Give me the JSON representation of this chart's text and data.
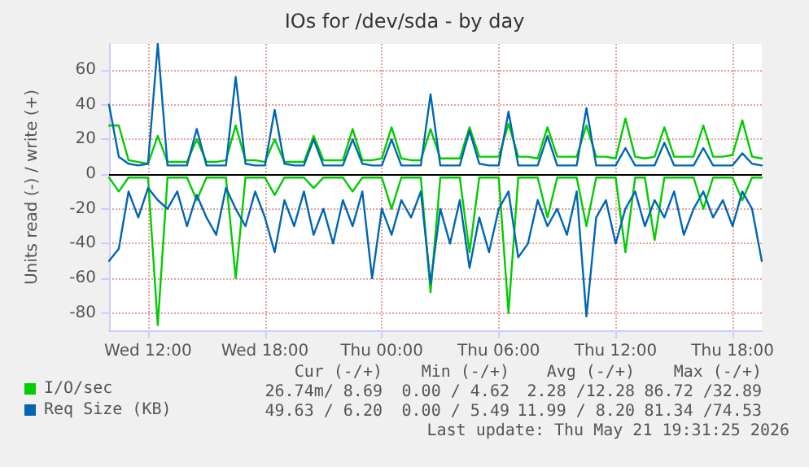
{
  "chart_data": {
    "type": "line",
    "title": "IOs for /dev/sda - by day",
    "ylabel": "Units read (-) / write (+)",
    "x": [
      "2026-05-20T10:00",
      "2026-05-20T10:30",
      "2026-05-20T11:00",
      "2026-05-20T11:30",
      "2026-05-20T12:00",
      "2026-05-20T12:30",
      "2026-05-20T13:00",
      "2026-05-20T13:30",
      "2026-05-20T14:00",
      "2026-05-20T14:30",
      "2026-05-20T15:00",
      "2026-05-20T15:30",
      "2026-05-20T16:00",
      "2026-05-20T16:30",
      "2026-05-20T17:00",
      "2026-05-20T17:30",
      "2026-05-20T18:00",
      "2026-05-20T18:30",
      "2026-05-20T19:00",
      "2026-05-20T19:30",
      "2026-05-20T20:00",
      "2026-05-20T20:30",
      "2026-05-20T21:00",
      "2026-05-20T21:30",
      "2026-05-20T22:00",
      "2026-05-20T22:30",
      "2026-05-20T23:00",
      "2026-05-20T23:30",
      "2026-05-21T00:00",
      "2026-05-21T00:30",
      "2026-05-21T01:00",
      "2026-05-21T01:30",
      "2026-05-21T02:00",
      "2026-05-21T02:30",
      "2026-05-21T03:00",
      "2026-05-21T03:30",
      "2026-05-21T04:00",
      "2026-05-21T04:30",
      "2026-05-21T05:00",
      "2026-05-21T05:30",
      "2026-05-21T06:00",
      "2026-05-21T06:30",
      "2026-05-21T07:00",
      "2026-05-21T07:30",
      "2026-05-21T08:00",
      "2026-05-21T08:30",
      "2026-05-21T09:00",
      "2026-05-21T09:30",
      "2026-05-21T10:00",
      "2026-05-21T10:30",
      "2026-05-21T11:00",
      "2026-05-21T11:30",
      "2026-05-21T12:00",
      "2026-05-21T12:30",
      "2026-05-21T13:00",
      "2026-05-21T13:30",
      "2026-05-21T14:00",
      "2026-05-21T14:30",
      "2026-05-21T15:00",
      "2026-05-21T15:30",
      "2026-05-21T16:00",
      "2026-05-21T16:30",
      "2026-05-21T17:00",
      "2026-05-21T17:30",
      "2026-05-21T18:00",
      "2026-05-21T18:30",
      "2026-05-21T19:00",
      "2026-05-21T19:30"
    ],
    "series": [
      {
        "color": "#00cc00",
        "values": [
          -2,
          -10,
          -2,
          -2,
          -2,
          -87,
          -2,
          -2,
          -2,
          -15,
          -2,
          -2,
          -2,
          -60,
          -2,
          -2,
          -2,
          -12,
          -2,
          -2,
          -2,
          -8,
          -2,
          -2,
          -2,
          -10,
          -2,
          -2,
          -2,
          -20,
          -2,
          -2,
          -2,
          -68,
          -2,
          -2,
          -2,
          -45,
          -2,
          -2,
          -2,
          -80,
          -2,
          -2,
          -2,
          -25,
          -2,
          -2,
          -2,
          -30,
          -2,
          -2,
          -2,
          -45,
          -2,
          -2,
          -38,
          -2,
          -2,
          -2,
          -2,
          -20,
          -2,
          -2,
          -2,
          -15,
          -2,
          -2
        ]
      },
      {
        "name": "I/O/sec",
        "color": "#00cc00",
        "values": [
          28,
          28,
          8,
          7,
          6,
          22,
          7,
          7,
          7,
          20,
          7,
          7,
          8,
          28,
          8,
          8,
          7,
          20,
          7,
          7,
          7,
          22,
          8,
          8,
          8,
          26,
          8,
          8,
          9,
          27,
          9,
          8,
          8,
          26,
          9,
          9,
          9,
          27,
          10,
          10,
          10,
          29,
          10,
          10,
          9,
          27,
          10,
          10,
          10,
          28,
          10,
          10,
          9,
          32,
          10,
          9,
          10,
          27,
          10,
          10,
          10,
          28,
          10,
          10,
          11,
          31,
          10,
          9
        ]
      },
      {
        "color": "#0066b3",
        "values": [
          -50,
          -43,
          -10,
          -25,
          -8,
          -15,
          -20,
          -10,
          -30,
          -12,
          -25,
          -35,
          -8,
          -20,
          -30,
          -10,
          -25,
          -45,
          -15,
          -30,
          -10,
          -35,
          -20,
          -40,
          -15,
          -30,
          -10,
          -60,
          -20,
          -35,
          -15,
          -25,
          -10,
          -63,
          -20,
          -40,
          -15,
          -54,
          -25,
          -45,
          -20,
          -10,
          -48,
          -40,
          -15,
          -30,
          -20,
          -35,
          -10,
          -82,
          -25,
          -15,
          -40,
          -20,
          -10,
          -30,
          -15,
          -25,
          -10,
          -35,
          -20,
          -10,
          -25,
          -15,
          -30,
          -10,
          -20,
          -50
        ]
      },
      {
        "name": "Req Size (KB)",
        "color": "#0066b3",
        "values": [
          40,
          10,
          6,
          5,
          6,
          75,
          5,
          5,
          5,
          26,
          5,
          5,
          5,
          56,
          6,
          5,
          5,
          37,
          6,
          5,
          5,
          20,
          5,
          5,
          5,
          20,
          6,
          5,
          5,
          20,
          5,
          5,
          5,
          46,
          5,
          5,
          5,
          25,
          6,
          5,
          5,
          36,
          5,
          5,
          5,
          22,
          5,
          5,
          5,
          38,
          5,
          5,
          5,
          15,
          5,
          5,
          5,
          18,
          5,
          5,
          5,
          15,
          5,
          5,
          5,
          12,
          6,
          5
        ]
      }
    ],
    "xlim": [
      "2026-05-20T10:00",
      "2026-05-21T19:30"
    ],
    "xticks": [
      {
        "value": "2026-05-20T12:00",
        "label": "Wed 12:00"
      },
      {
        "value": "2026-05-20T18:00",
        "label": "Wed 18:00"
      },
      {
        "value": "2026-05-21T00:00",
        "label": "Thu 00:00"
      },
      {
        "value": "2026-05-21T06:00",
        "label": "Thu 06:00"
      },
      {
        "value": "2026-05-21T12:00",
        "label": "Thu 12:00"
      },
      {
        "value": "2026-05-21T18:00",
        "label": "Thu 18:00"
      }
    ],
    "ylim": [
      -90,
      75
    ],
    "yticks": [
      -80,
      -60,
      -40,
      -20,
      0,
      20,
      40,
      60
    ],
    "ref_lines": [
      {
        "axis": "y",
        "value": 0,
        "color": "#000000"
      }
    ],
    "grid": true,
    "legend": "bottom left",
    "marker": "none",
    "line_style": "solid",
    "annotations": [
      "Cur (-/+)",
      "Min (-/+)",
      "Avg (-/+)",
      "Max (-/+)",
      "26.74m/ 8.69",
      "0.00 / 4.62",
      "2.28 /12.28",
      "86.72 /32.89",
      "49.63 / 6.20",
      "0.00 / 5.49",
      "11.99 / 8.20",
      "81.34 /74.53",
      "Last update: Thu May 21 19:31:25 2026"
    ]
  }
}
